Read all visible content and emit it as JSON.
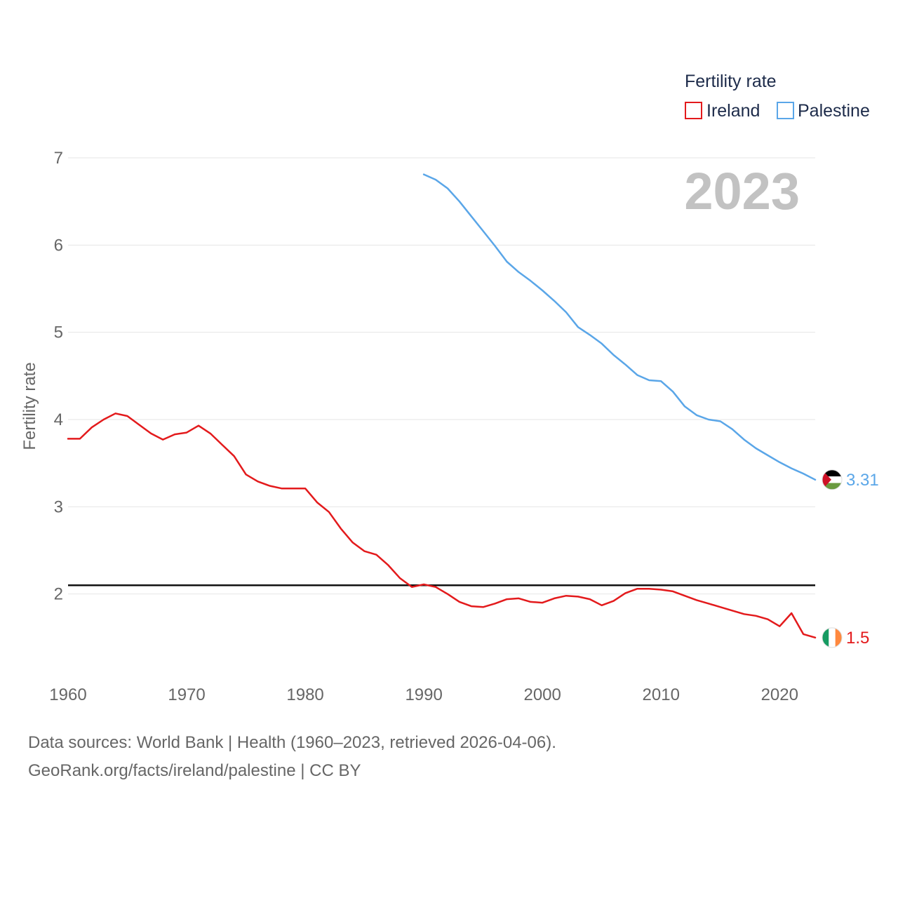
{
  "chart_data": {
    "type": "line",
    "title": "",
    "xlabel": "",
    "ylabel": "Fertility rate",
    "xlim": [
      1960,
      2023
    ],
    "ylim": [
      1.0,
      7.0
    ],
    "x_ticks": [
      1960,
      1970,
      1980,
      1990,
      2000,
      2010,
      2020
    ],
    "y_ticks": [
      2,
      3,
      4,
      5,
      6,
      7
    ],
    "year_label": "2023",
    "legend": {
      "title": "Fertility rate",
      "position": "top-right"
    },
    "reference_line": {
      "value": 2.1
    },
    "series": [
      {
        "name": "Ireland",
        "color": "#e31a1c",
        "end_label": "1.5",
        "flag": "ireland-flag-icon",
        "x": [
          1960,
          1961,
          1962,
          1963,
          1964,
          1965,
          1966,
          1967,
          1968,
          1969,
          1970,
          1971,
          1972,
          1973,
          1974,
          1975,
          1976,
          1977,
          1978,
          1979,
          1980,
          1981,
          1982,
          1983,
          1984,
          1985,
          1986,
          1987,
          1988,
          1989,
          1990,
          1991,
          1992,
          1993,
          1994,
          1995,
          1996,
          1997,
          1998,
          1999,
          2000,
          2001,
          2002,
          2003,
          2004,
          2005,
          2006,
          2007,
          2008,
          2009,
          2010,
          2011,
          2012,
          2013,
          2014,
          2015,
          2016,
          2017,
          2018,
          2019,
          2020,
          2021,
          2022,
          2023
        ],
        "values": [
          3.78,
          3.78,
          3.91,
          4.0,
          4.07,
          4.04,
          3.94,
          3.84,
          3.77,
          3.83,
          3.85,
          3.93,
          3.84,
          3.71,
          3.58,
          3.37,
          3.29,
          3.24,
          3.21,
          3.21,
          3.21,
          3.05,
          2.94,
          2.75,
          2.59,
          2.49,
          2.45,
          2.33,
          2.18,
          2.08,
          2.11,
          2.08,
          2.0,
          1.91,
          1.86,
          1.85,
          1.89,
          1.94,
          1.95,
          1.91,
          1.9,
          1.95,
          1.98,
          1.97,
          1.94,
          1.87,
          1.92,
          2.01,
          2.06,
          2.06,
          2.05,
          2.03,
          1.98,
          1.93,
          1.89,
          1.85,
          1.81,
          1.77,
          1.75,
          1.71,
          1.63,
          1.78,
          1.54,
          1.5
        ]
      },
      {
        "name": "Palestine",
        "color": "#5aa6e8",
        "end_label": "3.31",
        "flag": "palestine-flag-icon",
        "x": [
          1990,
          1991,
          1992,
          1993,
          1994,
          1995,
          1996,
          1997,
          1998,
          1999,
          2000,
          2001,
          2002,
          2003,
          2004,
          2005,
          2006,
          2007,
          2008,
          2009,
          2010,
          2011,
          2012,
          2013,
          2014,
          2015,
          2016,
          2017,
          2018,
          2019,
          2020,
          2021,
          2022,
          2023
        ],
        "values": [
          6.81,
          6.75,
          6.65,
          6.5,
          6.33,
          6.16,
          5.99,
          5.81,
          5.69,
          5.59,
          5.48,
          5.36,
          5.23,
          5.06,
          4.97,
          4.87,
          4.74,
          4.63,
          4.51,
          4.45,
          4.44,
          4.32,
          4.15,
          4.05,
          4.0,
          3.98,
          3.89,
          3.77,
          3.67,
          3.59,
          3.51,
          3.44,
          3.38,
          3.31
        ]
      }
    ]
  },
  "source": {
    "line1": "Data sources: World Bank | Health (1960–2023, retrieved 2026-04-06).",
    "line2": "GeoRank.org/facts/ireland/palestine | CC BY"
  }
}
